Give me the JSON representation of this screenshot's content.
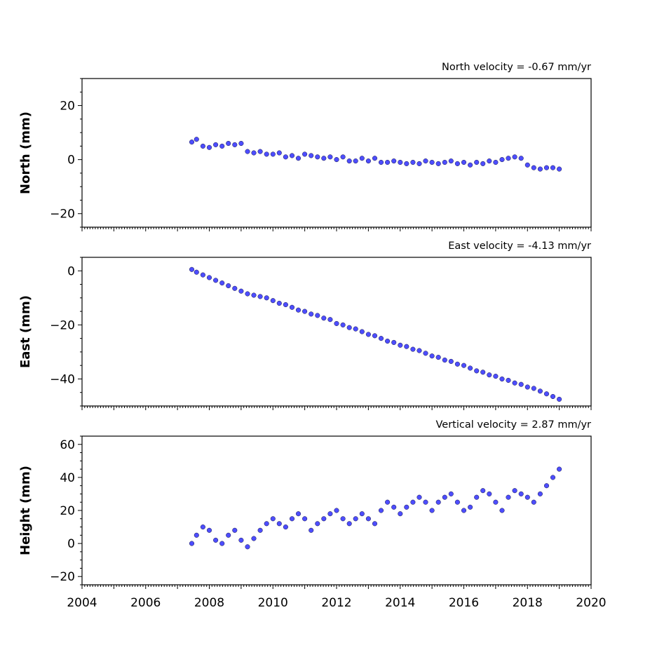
{
  "chart_data": [
    {
      "type": "scatter",
      "title": "North velocity = -0.67 mm/yr",
      "ylabel": "North (mm)",
      "xlim": [
        2004,
        2020
      ],
      "ylim": [
        -25,
        30
      ],
      "yticks": [
        -20,
        0,
        20
      ],
      "ytick_labels": [
        "−20",
        "0",
        "20"
      ],
      "series": [
        {
          "x": [
            2007.45,
            2007.6,
            2007.8,
            2008.0,
            2008.2,
            2008.4,
            2008.6,
            2008.8,
            2009.0,
            2009.2,
            2009.4,
            2009.6,
            2009.8,
            2010.0,
            2010.2,
            2010.4,
            2010.6,
            2010.8,
            2011.0,
            2011.2,
            2011.4,
            2011.6,
            2011.8,
            2012.0,
            2012.2,
            2012.4,
            2012.6,
            2012.8,
            2013.0,
            2013.2,
            2013.4,
            2013.6,
            2013.8,
            2014.0,
            2014.2,
            2014.4,
            2014.6,
            2014.8,
            2015.0,
            2015.2,
            2015.4,
            2015.6,
            2015.8,
            2016.0,
            2016.2,
            2016.4,
            2016.6,
            2016.8,
            2017.0,
            2017.2,
            2017.4,
            2017.6,
            2017.8,
            2018.0,
            2018.2,
            2018.4,
            2018.6,
            2018.8,
            2019.0
          ],
          "y": [
            6.5,
            7.5,
            5.0,
            4.5,
            5.5,
            5.0,
            6.0,
            5.5,
            6.0,
            3.0,
            2.5,
            3.0,
            2.0,
            2.0,
            2.5,
            1.0,
            1.5,
            0.5,
            2.0,
            1.5,
            1.0,
            0.5,
            1.0,
            0.0,
            1.0,
            -0.5,
            -0.5,
            0.5,
            -0.5,
            0.5,
            -1.0,
            -1.0,
            -0.5,
            -1.0,
            -1.5,
            -1.0,
            -1.5,
            -0.5,
            -1.0,
            -1.5,
            -1.0,
            -0.5,
            -1.5,
            -1.0,
            -2.0,
            -1.0,
            -1.5,
            -0.5,
            -1.0,
            0.0,
            0.5,
            1.0,
            0.5,
            -2.0,
            -3.0,
            -3.5,
            -3.0,
            -3.0,
            -3.5
          ]
        }
      ]
    },
    {
      "type": "scatter",
      "title": "East velocity = -4.13 mm/yr",
      "ylabel": "East (mm)",
      "xlim": [
        2004,
        2020
      ],
      "ylim": [
        -50,
        5
      ],
      "yticks": [
        -40,
        -20,
        0
      ],
      "ytick_labels": [
        "−40",
        "−20",
        "0"
      ],
      "series": [
        {
          "x": [
            2007.45,
            2007.6,
            2007.8,
            2008.0,
            2008.2,
            2008.4,
            2008.6,
            2008.8,
            2009.0,
            2009.2,
            2009.4,
            2009.6,
            2009.8,
            2010.0,
            2010.2,
            2010.4,
            2010.6,
            2010.8,
            2011.0,
            2011.2,
            2011.4,
            2011.6,
            2011.8,
            2012.0,
            2012.2,
            2012.4,
            2012.6,
            2012.8,
            2013.0,
            2013.2,
            2013.4,
            2013.6,
            2013.8,
            2014.0,
            2014.2,
            2014.4,
            2014.6,
            2014.8,
            2015.0,
            2015.2,
            2015.4,
            2015.6,
            2015.8,
            2016.0,
            2016.2,
            2016.4,
            2016.6,
            2016.8,
            2017.0,
            2017.2,
            2017.4,
            2017.6,
            2017.8,
            2018.0,
            2018.2,
            2018.4,
            2018.6,
            2018.8,
            2019.0
          ],
          "y": [
            0.5,
            -0.5,
            -1.5,
            -2.5,
            -3.5,
            -4.5,
            -5.5,
            -6.5,
            -7.5,
            -8.5,
            -9.0,
            -9.5,
            -10.0,
            -11.0,
            -12.0,
            -12.5,
            -13.5,
            -14.5,
            -15.0,
            -16.0,
            -16.5,
            -17.5,
            -18.0,
            -19.5,
            -20.0,
            -21.0,
            -21.5,
            -22.5,
            -23.5,
            -24.0,
            -25.0,
            -26.0,
            -26.5,
            -27.5,
            -28.0,
            -29.0,
            -29.5,
            -30.5,
            -31.5,
            -32.0,
            -33.0,
            -33.5,
            -34.5,
            -35.0,
            -36.0,
            -37.0,
            -37.5,
            -38.5,
            -39.0,
            -40.0,
            -40.5,
            -41.5,
            -42.0,
            -43.0,
            -43.5,
            -44.5,
            -45.5,
            -46.5,
            -47.5
          ]
        }
      ]
    },
    {
      "type": "scatter",
      "title": "Vertical velocity = 2.87 mm/yr",
      "ylabel": "Height (mm)",
      "xlim": [
        2004,
        2020
      ],
      "ylim": [
        -25,
        65
      ],
      "yticks": [
        -20,
        0,
        20,
        40,
        60
      ],
      "ytick_labels": [
        "−20",
        "0",
        "20",
        "40",
        "60"
      ],
      "xticks": [
        2004,
        2006,
        2008,
        2010,
        2012,
        2014,
        2016,
        2018,
        2020
      ],
      "xtick_labels": [
        "2004",
        "2006",
        "2008",
        "2010",
        "2012",
        "2014",
        "2016",
        "2018",
        "2020"
      ],
      "series": [
        {
          "x": [
            2007.45,
            2007.6,
            2007.8,
            2008.0,
            2008.2,
            2008.4,
            2008.6,
            2008.8,
            2009.0,
            2009.2,
            2009.4,
            2009.6,
            2009.8,
            2010.0,
            2010.2,
            2010.4,
            2010.6,
            2010.8,
            2011.0,
            2011.2,
            2011.4,
            2011.6,
            2011.8,
            2012.0,
            2012.2,
            2012.4,
            2012.6,
            2012.8,
            2013.0,
            2013.2,
            2013.4,
            2013.6,
            2013.8,
            2014.0,
            2014.2,
            2014.4,
            2014.6,
            2014.8,
            2015.0,
            2015.2,
            2015.4,
            2015.6,
            2015.8,
            2016.0,
            2016.2,
            2016.4,
            2016.6,
            2016.8,
            2017.0,
            2017.2,
            2017.4,
            2017.6,
            2017.8,
            2018.0,
            2018.2,
            2018.4,
            2018.6,
            2018.8,
            2019.0
          ],
          "y": [
            0,
            5,
            10,
            8,
            2,
            0,
            5,
            8,
            2,
            -2,
            3,
            8,
            12,
            15,
            12,
            10,
            15,
            18,
            15,
            8,
            12,
            15,
            18,
            20,
            15,
            12,
            15,
            18,
            15,
            12,
            20,
            25,
            22,
            18,
            22,
            25,
            28,
            25,
            20,
            25,
            28,
            30,
            25,
            20,
            22,
            28,
            32,
            30,
            25,
            20,
            28,
            32,
            30,
            28,
            25,
            30,
            35,
            40,
            45
          ]
        }
      ]
    }
  ]
}
